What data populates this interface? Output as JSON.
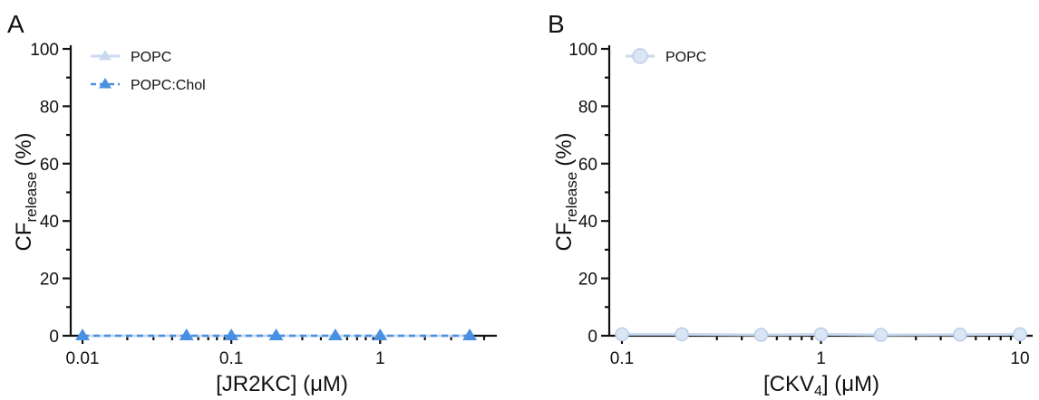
{
  "chart_data": [
    {
      "type": "line",
      "panel_label": "A",
      "x_scale": "log",
      "xlabel": "[JR2KC] (μM)",
      "ylabel_main": "CF",
      "ylabel_sub": "release",
      "ylabel_unit": "(%)",
      "xlim": [
        0.01,
        5
      ],
      "ylim": [
        0,
        100
      ],
      "x_ticks": [
        0.01,
        0.1,
        1
      ],
      "x_tick_labels": [
        "0.01",
        "0.1",
        "1"
      ],
      "y_ticks": [
        0,
        20,
        40,
        60,
        80,
        100
      ],
      "y_tick_labels": [
        "0",
        "20",
        "40",
        "60",
        "80",
        "100"
      ],
      "legend_position": "top-left",
      "series": [
        {
          "name": "POPC",
          "marker": "triangle",
          "line_style": "solid",
          "color": "#c9daf0",
          "x": [
            0.01,
            0.05,
            0.1,
            0.2,
            0.5,
            1,
            4
          ],
          "y": [
            0,
            0,
            0,
            0,
            0,
            0,
            0
          ]
        },
        {
          "name": "POPC:Chol",
          "marker": "triangle",
          "line_style": "dashed",
          "color": "#4a90e2",
          "x": [
            0.01,
            0.05,
            0.1,
            0.2,
            0.5,
            1,
            4
          ],
          "y": [
            0,
            0,
            0,
            0,
            0,
            0,
            0
          ]
        }
      ]
    },
    {
      "type": "line",
      "panel_label": "B",
      "x_scale": "log",
      "xlabel_main": "[CKV",
      "xlabel_sub": "4",
      "xlabel_tail": "] (μM)",
      "ylabel_main": "CF",
      "ylabel_sub": "release",
      "ylabel_unit": "(%)",
      "xlim": [
        0.1,
        10
      ],
      "ylim": [
        0,
        100
      ],
      "x_ticks": [
        0.1,
        1,
        10
      ],
      "x_tick_labels": [
        "0.1",
        "1",
        "10"
      ],
      "y_ticks": [
        0,
        20,
        40,
        60,
        80,
        100
      ],
      "y_tick_labels": [
        "0",
        "20",
        "40",
        "60",
        "80",
        "100"
      ],
      "legend_position": "top-left",
      "series": [
        {
          "name": "POPC",
          "marker": "circle",
          "line_style": "solid",
          "color": "#c9daf0",
          "x": [
            0.1,
            0.2,
            0.5,
            1,
            2,
            5,
            10
          ],
          "y": [
            0.5,
            0.5,
            0.3,
            0.5,
            0.3,
            0.4,
            0.5
          ]
        }
      ]
    }
  ]
}
